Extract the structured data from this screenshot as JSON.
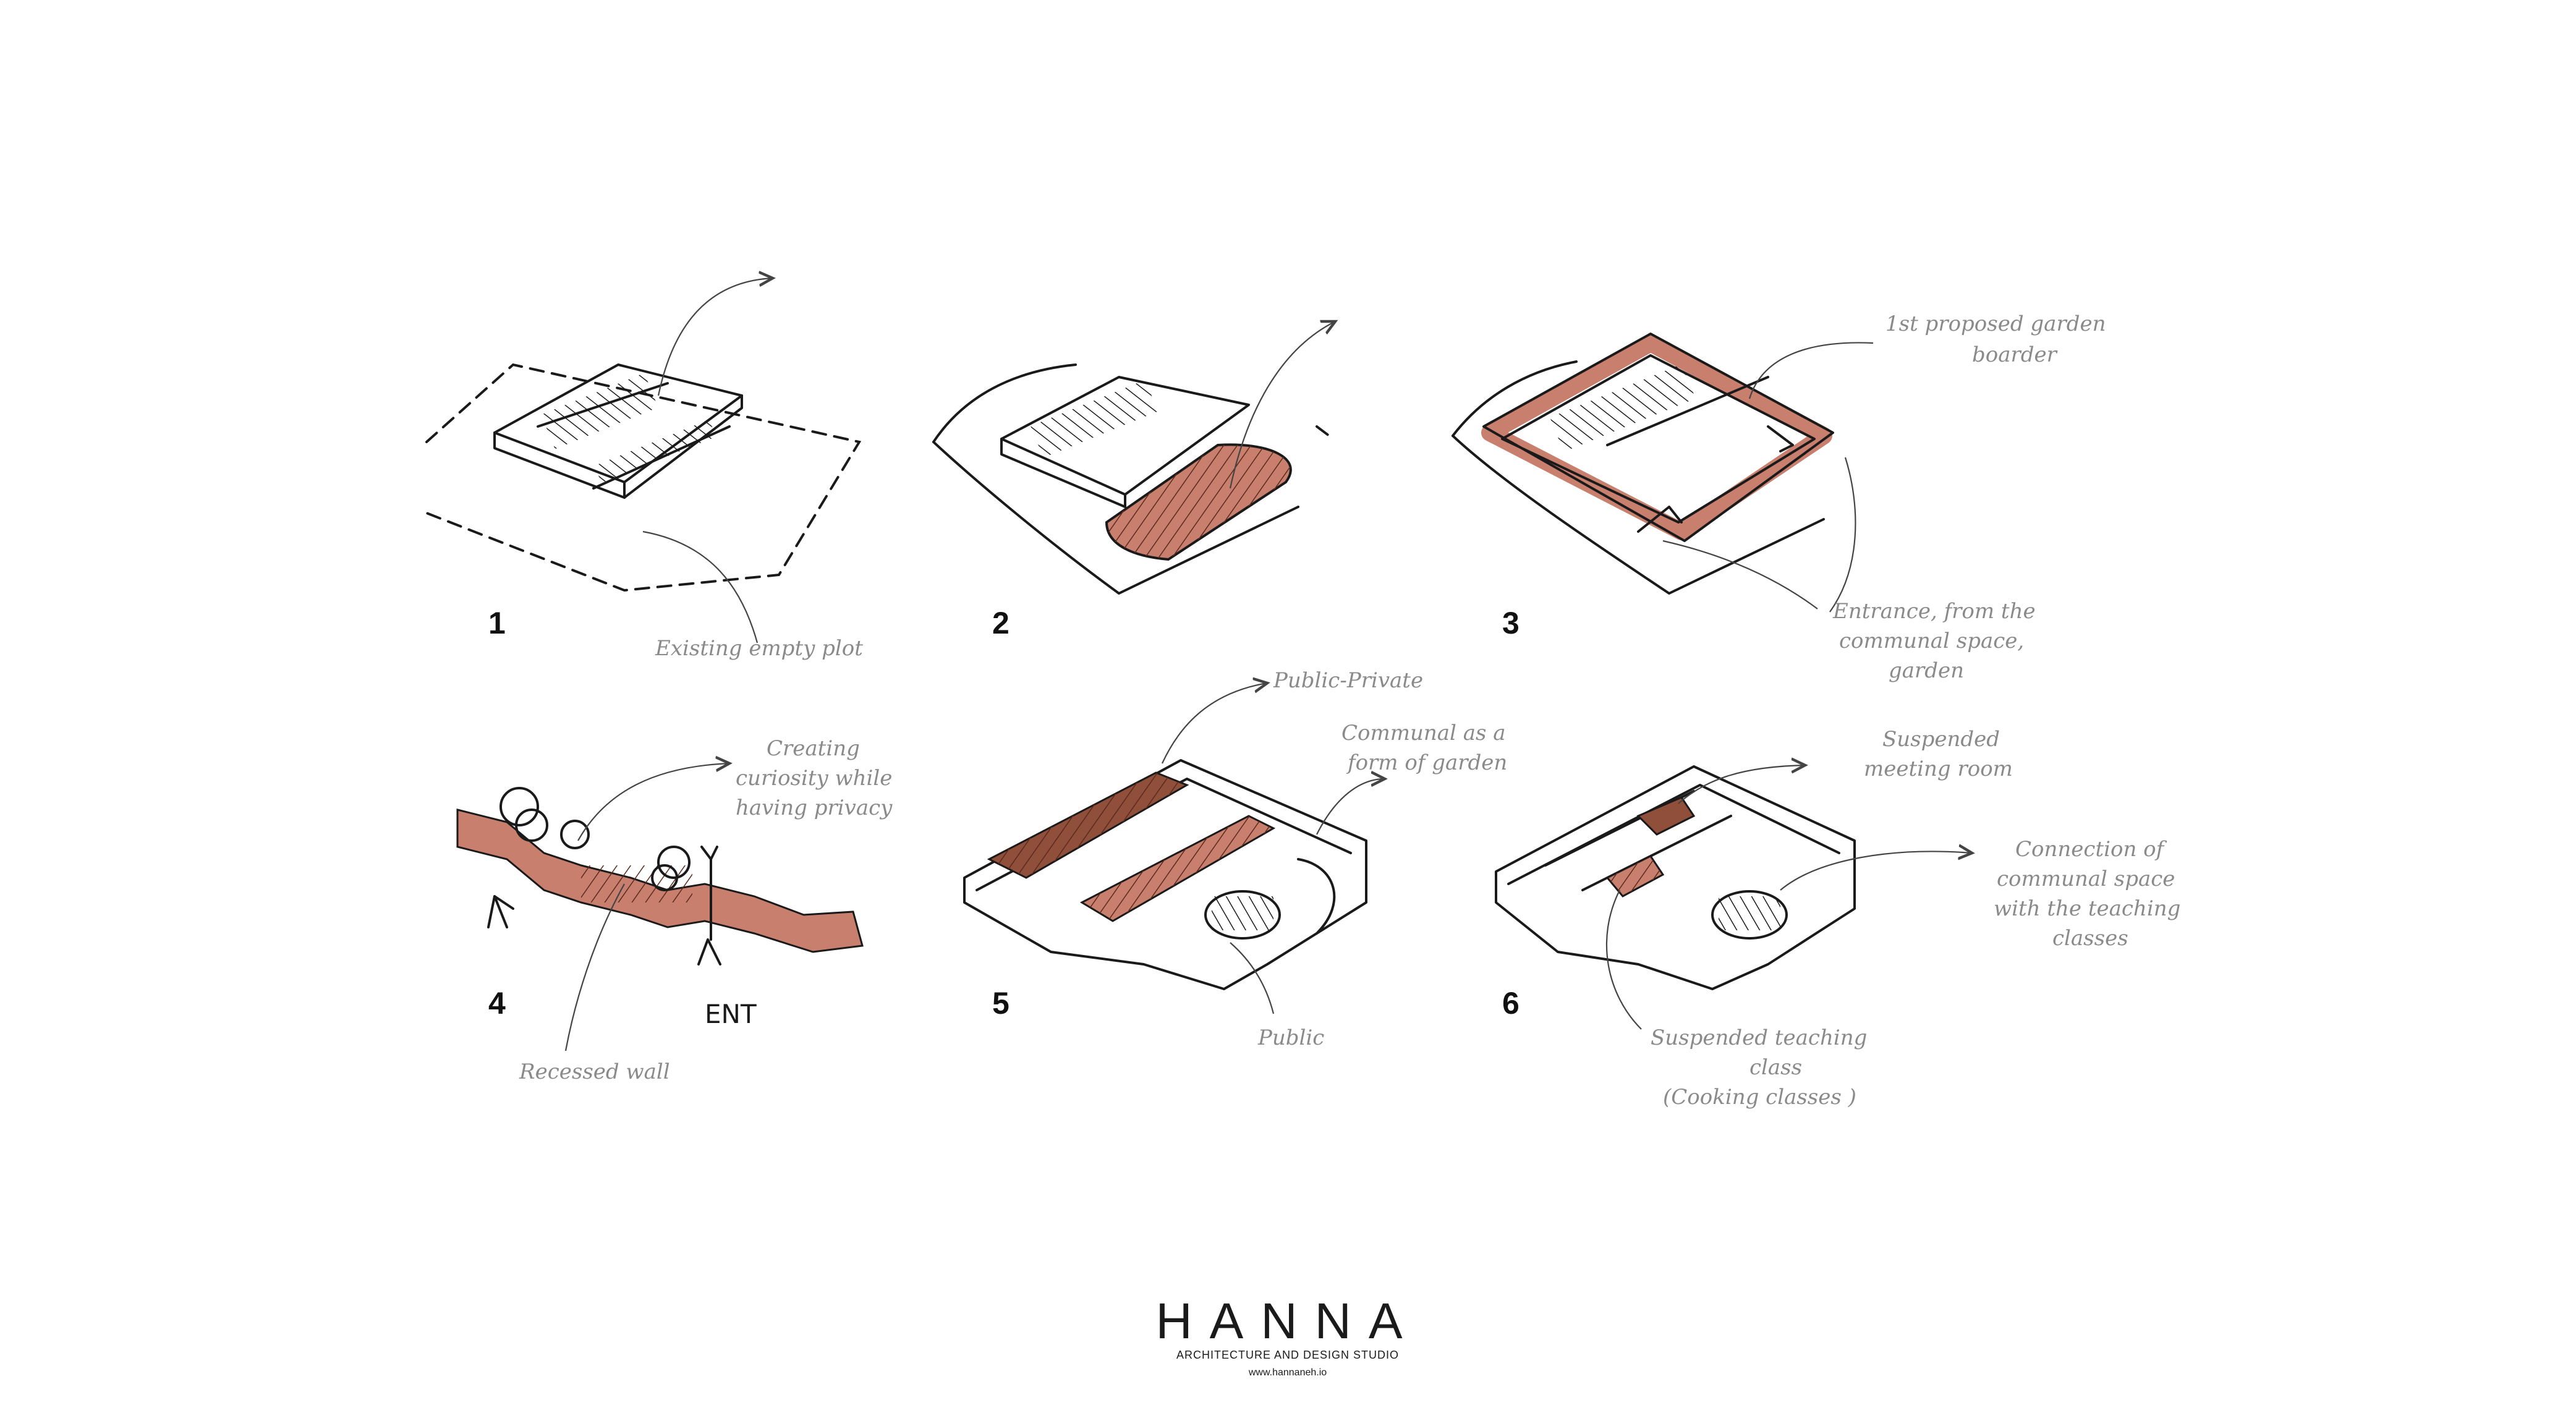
{
  "steps": [
    {
      "number": "1",
      "labels": [
        "Existing empty plot"
      ]
    },
    {
      "number": "2",
      "labels": []
    },
    {
      "number": "3",
      "labels": [
        "1st proposed garden",
        "boarder",
        "Entrance, from the",
        "communal space,",
        "garden"
      ]
    },
    {
      "number": "4",
      "labels": [
        "Creating",
        "curiosity while",
        "having privacy",
        "Recessed wall",
        "ENT"
      ]
    },
    {
      "number": "5",
      "labels": [
        "Public-Private",
        "Communal as a",
        "form of garden",
        "Public"
      ]
    },
    {
      "number": "6",
      "labels": [
        "Suspended",
        "meeting room",
        "Connection of",
        "communal space",
        "with the teaching",
        "classes",
        "Suspended teaching",
        "class",
        "(Cooking classes )"
      ]
    }
  ],
  "brand": {
    "name": "HANNA",
    "tagline": "ARCHITECTURE AND DESIGN STUDIO",
    "url": "www.hannaneh.io"
  },
  "colors": {
    "accent": "#c97f6e",
    "accent_dark": "#8f4f3a",
    "ink": "#1a1a1a",
    "label": "#8a8a8a"
  }
}
